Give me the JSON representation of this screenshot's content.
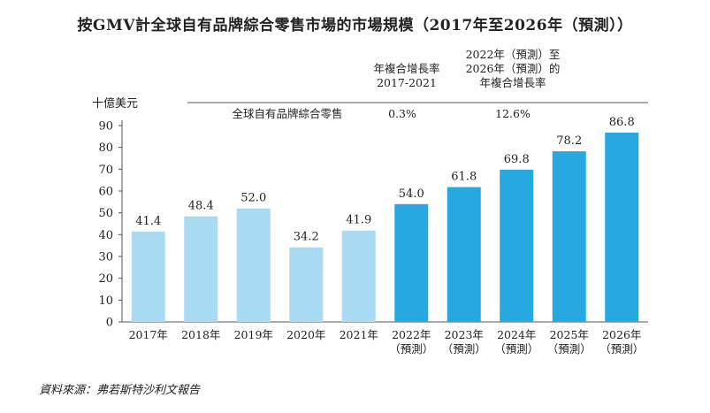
{
  "chart_data": {
    "type": "bar",
    "title": "按GMV計全球自有品牌綜合零售市場的市場規模（2017年至2026年（預測））",
    "ylabel": "十億美元",
    "ylim": [
      0,
      90
    ],
    "yticks": [
      0,
      10,
      20,
      30,
      40,
      50,
      60,
      70,
      80,
      90
    ],
    "categories": [
      {
        "line1": "2017年",
        "line2": ""
      },
      {
        "line1": "2018年",
        "line2": ""
      },
      {
        "line1": "2019年",
        "line2": ""
      },
      {
        "line1": "2020年",
        "line2": ""
      },
      {
        "line1": "2021年",
        "line2": ""
      },
      {
        "line1": "2022年",
        "line2": "（預測）"
      },
      {
        "line1": "2023年",
        "line2": "（預測）"
      },
      {
        "line1": "2024年",
        "line2": "（預測）"
      },
      {
        "line1": "2025年",
        "line2": "（預測）"
      },
      {
        "line1": "2026年",
        "line2": "（預測）"
      }
    ],
    "values": [
      41.4,
      48.4,
      52.0,
      34.2,
      41.9,
      54.0,
      61.8,
      69.8,
      78.2,
      86.8
    ],
    "value_labels": [
      "41.4",
      "48.4",
      "52.0",
      "34.2",
      "41.9",
      "54.0",
      "61.8",
      "69.8",
      "78.2",
      "86.8"
    ],
    "colors": {
      "historical": "#a9dcf2",
      "forecast": "#28a8e0",
      "axis": "#555555"
    },
    "cagr": {
      "header_hist": [
        "年複合增長率",
        "2017-2021"
      ],
      "header_forecast": [
        "2022年（預測）至",
        "2026年（預測）的",
        "年複合增長率"
      ],
      "row_label": "全球自有品牌綜合零售",
      "hist_value": "0.3%",
      "forecast_value": "12.6%"
    },
    "grid": false,
    "legend": "none"
  },
  "source_note": "資料來源：弗若斯特沙利文報告"
}
